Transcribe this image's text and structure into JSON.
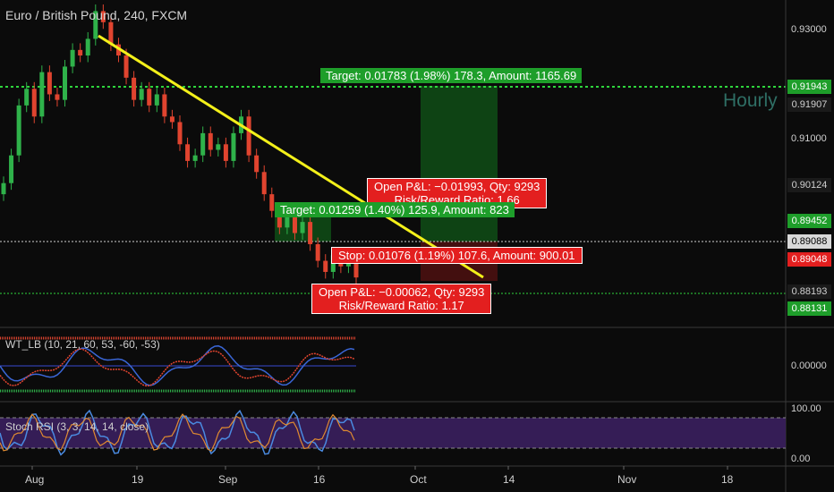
{
  "title": "Euro / British Pound, 240, FXCM",
  "watermark": "Hourly",
  "labels": {
    "target_upper": "Target: 0.01783 (1.98%) 178.3, Amount: 1165.69",
    "pnl_upper_line1": "Open P&L: −0.01993, Qty: 9293",
    "pnl_upper_line2": "Risk/Reward Ratio: 1.66",
    "target_lower": "Target: 0.01259 (1.40%) 125.9, Amount: 823",
    "stop": "Stop: 0.01076 (1.19%) 107.6, Amount: 900.01",
    "pnl_lower_line1": "Open P&L: −0.00062, Qty: 9293",
    "pnl_lower_line2": "Risk/Reward Ratio: 1.17"
  },
  "indicators": {
    "wt": "WT_LB (10, 21, 60, 53, -60, -53)",
    "stoch": "Stoch RSI (3, 3, 14, 14, close)"
  },
  "price_axis": {
    "ticks": [
      "0.93000",
      "0.91000"
    ],
    "tags": [
      {
        "value": "0.91943",
        "color": "#1e9e2a",
        "text_color": "#ffffff"
      },
      {
        "value": "0.91907",
        "color": "#1a1a1a",
        "text_color": "#d0d0d0"
      },
      {
        "value": "0.90124",
        "color": "#1a1a1a",
        "text_color": "#d0d0d0"
      },
      {
        "value": "0.89452",
        "color": "#1e9e2a",
        "text_color": "#ffffff"
      },
      {
        "value": "0.89088",
        "color": "#d8d8d8",
        "text_color": "#000000"
      },
      {
        "value": "0.89048",
        "color": "#e31f1f",
        "text_color": "#ffffff"
      },
      {
        "value": "0.88193",
        "color": "#1a1a1a",
        "text_color": "#d0d0d0"
      },
      {
        "value": "0.88131",
        "color": "#1e9e2a",
        "text_color": "#ffffff"
      }
    ]
  },
  "wt_axis": {
    "ticks": [
      "0.00000"
    ]
  },
  "stoch_axis": {
    "ticks": [
      "100.00",
      "0.00"
    ]
  },
  "time_axis": {
    "ticks": [
      "Aug",
      "19",
      "Sep",
      "16",
      "Oct",
      "14",
      "Nov",
      "18"
    ]
  },
  "colors": {
    "up": "#2fb24a",
    "down": "#e0442f",
    "trendline": "#f3f01a",
    "target_zone": "#0f5a18",
    "stop_zone": "#5a1111",
    "stoch_band": "#3a1f5e"
  },
  "chart_data": {
    "type": "candlestick",
    "title": "Euro / British Pound, 240, FXCM",
    "xlabel": "",
    "ylabel": "",
    "x_ticks": [
      "Aug",
      "19",
      "Sep",
      "16",
      "Oct",
      "14",
      "Nov",
      "18"
    ],
    "ylim": [
      0.875,
      0.934
    ],
    "close_series": [
      0.901,
      0.906,
      0.915,
      0.918,
      0.913,
      0.921,
      0.917,
      0.916,
      0.922,
      0.925,
      0.924,
      0.927,
      0.932,
      0.93,
      0.926,
      0.924,
      0.92,
      0.916,
      0.918,
      0.915,
      0.917,
      0.913,
      0.912,
      0.908,
      0.905,
      0.906,
      0.91,
      0.907,
      0.908,
      0.905,
      0.91,
      0.913,
      0.906,
      0.903,
      0.899,
      0.896,
      0.893,
      0.895,
      0.892,
      0.894,
      0.89,
      0.887,
      0.885,
      0.888,
      0.886,
      0.887,
      0.884
    ],
    "trendline": {
      "start": {
        "x": "Aug 12",
        "y": 0.928
      },
      "end": {
        "x": "Oct 4",
        "y": 0.886
      }
    },
    "horizontal_lines": [
      0.91943,
      0.89088,
      0.88193
    ],
    "levels": {
      "entry": 0.89088,
      "target": 0.91943,
      "stop": 0.88131
    },
    "wt_ob": 60,
    "wt_os": -60,
    "stoch_rsi_range": [
      0,
      100
    ]
  }
}
